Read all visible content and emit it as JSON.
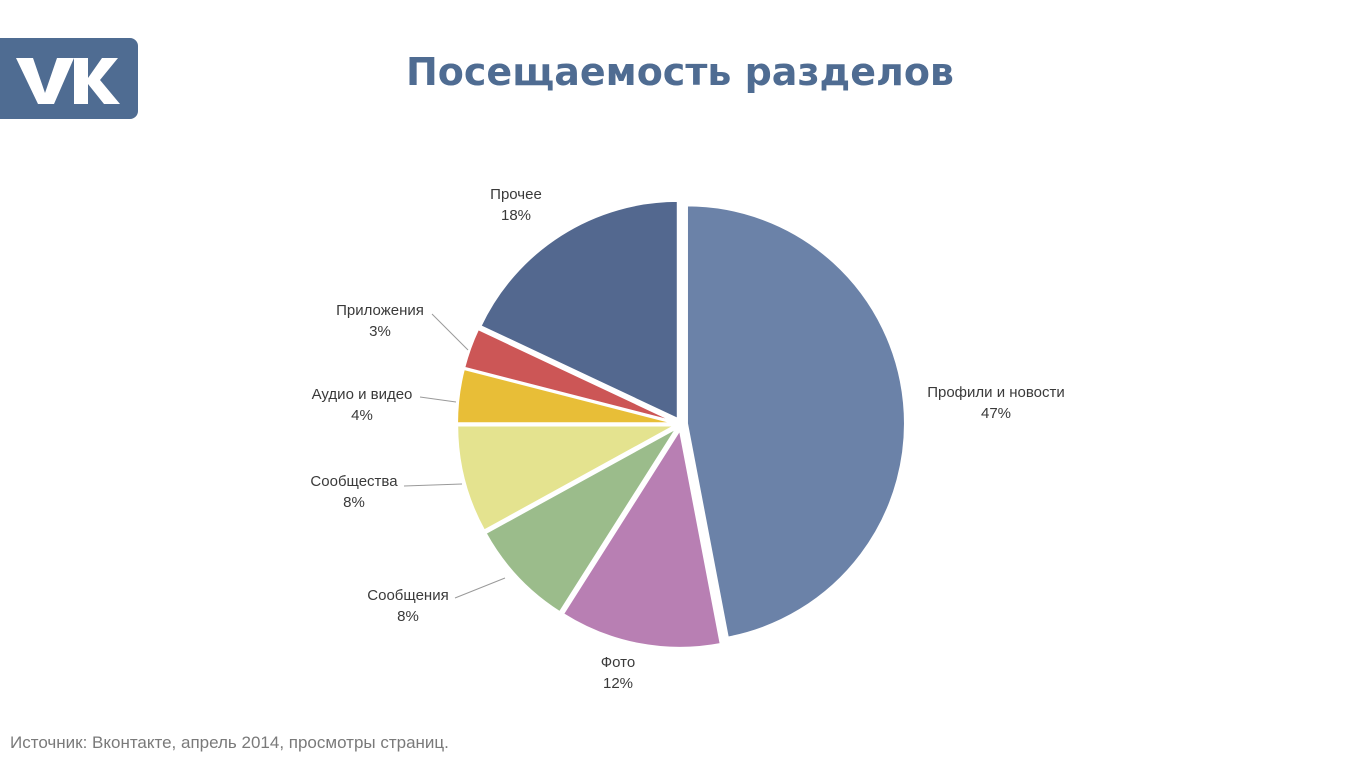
{
  "title": "Посещаемость разделов",
  "logo": {
    "icon": "vk-logo-icon",
    "color": "#4f6c92"
  },
  "source": "Источник: Вконтакте,  апрель 2014, просмотры страниц.",
  "chart_data": {
    "type": "pie",
    "title": "Посещаемость разделов",
    "unit": "%",
    "slices": [
      {
        "label": "Профили и новости",
        "value": 47,
        "value_label": "47%",
        "color": "#6b82a8"
      },
      {
        "label": "Фото",
        "value": 12,
        "value_label": "12%",
        "color": "#b87fb3"
      },
      {
        "label": "Сообщения",
        "value": 8,
        "value_label": "8%",
        "color": "#9bbc8b"
      },
      {
        "label": "Сообщества",
        "value": 8,
        "value_label": "8%",
        "color": "#e4e38f"
      },
      {
        "label": "Аудио и видео",
        "value": 4,
        "value_label": "4%",
        "color": "#e8be37"
      },
      {
        "label": "Приложения",
        "value": 3,
        "value_label": "3%",
        "color": "#cc5656"
      },
      {
        "label": "Прочее",
        "value": 18,
        "value_label": "18%",
        "color": "#53688f"
      }
    ],
    "exploded": true,
    "legend": "none",
    "labels": "outside"
  }
}
